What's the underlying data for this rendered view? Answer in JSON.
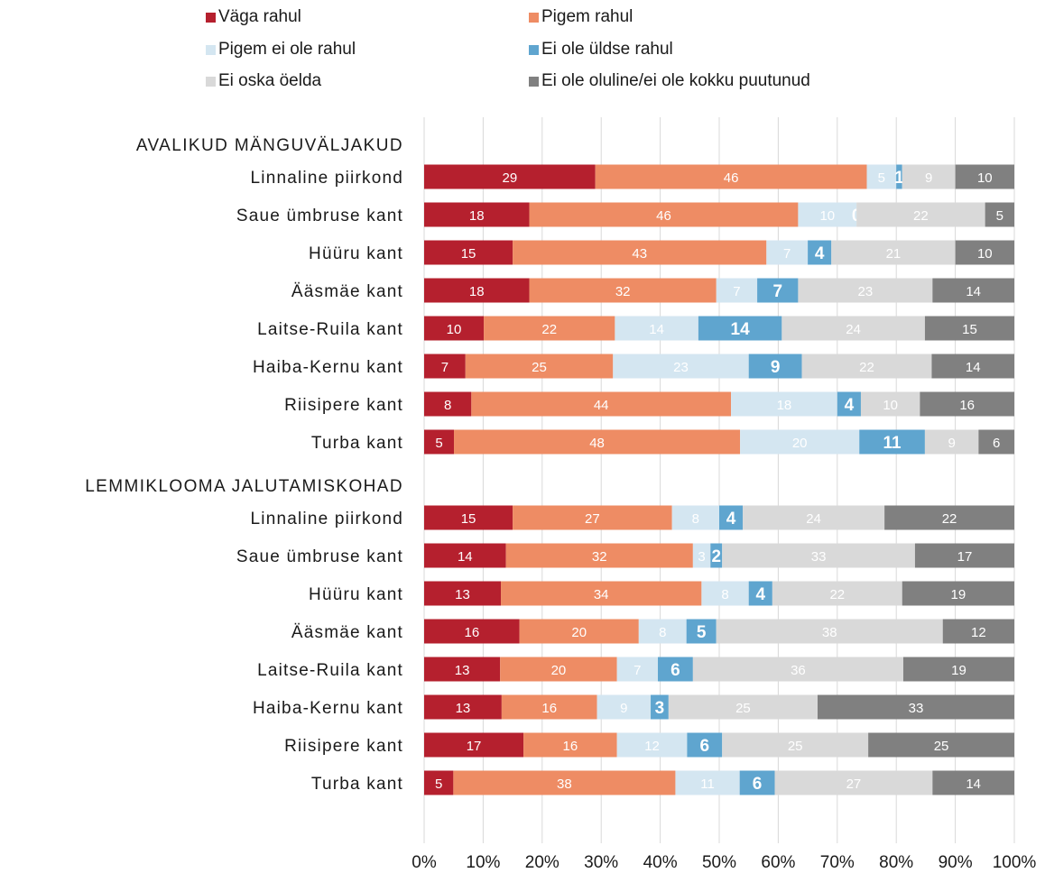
{
  "chart_data": {
    "type": "bar",
    "orientation": "horizontal",
    "stacked": "percent",
    "grid": true,
    "legend_position": "top",
    "xlim": [
      0,
      100
    ],
    "x_ticks": [
      "0%",
      "10%",
      "20%",
      "30%",
      "40%",
      "50%",
      "60%",
      "70%",
      "80%",
      "90%",
      "100%"
    ],
    "series": [
      {
        "name": "Väga rahul",
        "color": "#b5202e"
      },
      {
        "name": "Pigem rahul",
        "color": "#ee8c64"
      },
      {
        "name": "Pigem ei ole rahul",
        "color": "#d4e6f1"
      },
      {
        "name": "Ei ole üldse rahul",
        "color": "#5fa5cf"
      },
      {
        "name": "Ei oska öelda",
        "color": "#d9d9d9"
      },
      {
        "name": "Ei ole oluline/ei ole kokku puutunud",
        "color": "#808080"
      }
    ],
    "groups": [
      {
        "title": "AVALIKUD MÄNGUVÄLJAKUD",
        "rows": [
          {
            "label": "Linnaline piirkond",
            "values": [
              29,
              46,
              5,
              1,
              9,
              10
            ]
          },
          {
            "label": "Saue ümbruse kant",
            "values": [
              18,
              46,
              10,
              0,
              22,
              5
            ]
          },
          {
            "label": "Hüüru kant",
            "values": [
              15,
              43,
              7,
              4,
              21,
              10
            ]
          },
          {
            "label": "Ääsmäe kant",
            "values": [
              18,
              32,
              7,
              7,
              23,
              14
            ]
          },
          {
            "label": "Laitse-Ruila kant",
            "values": [
              10,
              22,
              14,
              14,
              24,
              15
            ]
          },
          {
            "label": "Haiba-Kernu kant",
            "values": [
              7,
              25,
              23,
              9,
              22,
              14
            ]
          },
          {
            "label": "Riisipere kant",
            "values": [
              8,
              44,
              18,
              4,
              10,
              16
            ]
          },
          {
            "label": "Turba kant",
            "values": [
              5,
              48,
              20,
              11,
              9,
              6
            ]
          }
        ]
      },
      {
        "title": "LEMMIKLOOMA JALUTAMISKOHAD",
        "rows": [
          {
            "label": "Linnaline piirkond",
            "values": [
              15,
              27,
              8,
              4,
              24,
              22
            ]
          },
          {
            "label": "Saue ümbruse kant",
            "values": [
              14,
              32,
              3,
              2,
              33,
              17
            ]
          },
          {
            "label": "Hüüru kant",
            "values": [
              13,
              34,
              8,
              4,
              22,
              19
            ]
          },
          {
            "label": "Ääsmäe kant",
            "values": [
              16,
              20,
              8,
              5,
              38,
              12
            ]
          },
          {
            "label": "Laitse-Ruila kant",
            "values": [
              13,
              20,
              7,
              6,
              36,
              19
            ]
          },
          {
            "label": "Haiba-Kernu kant",
            "values": [
              13,
              16,
              9,
              3,
              25,
              33
            ]
          },
          {
            "label": "Riisipere kant",
            "values": [
              17,
              16,
              12,
              6,
              25,
              25
            ]
          },
          {
            "label": "Turba kant",
            "values": [
              5,
              38,
              11,
              6,
              27,
              14
            ]
          }
        ]
      }
    ]
  }
}
